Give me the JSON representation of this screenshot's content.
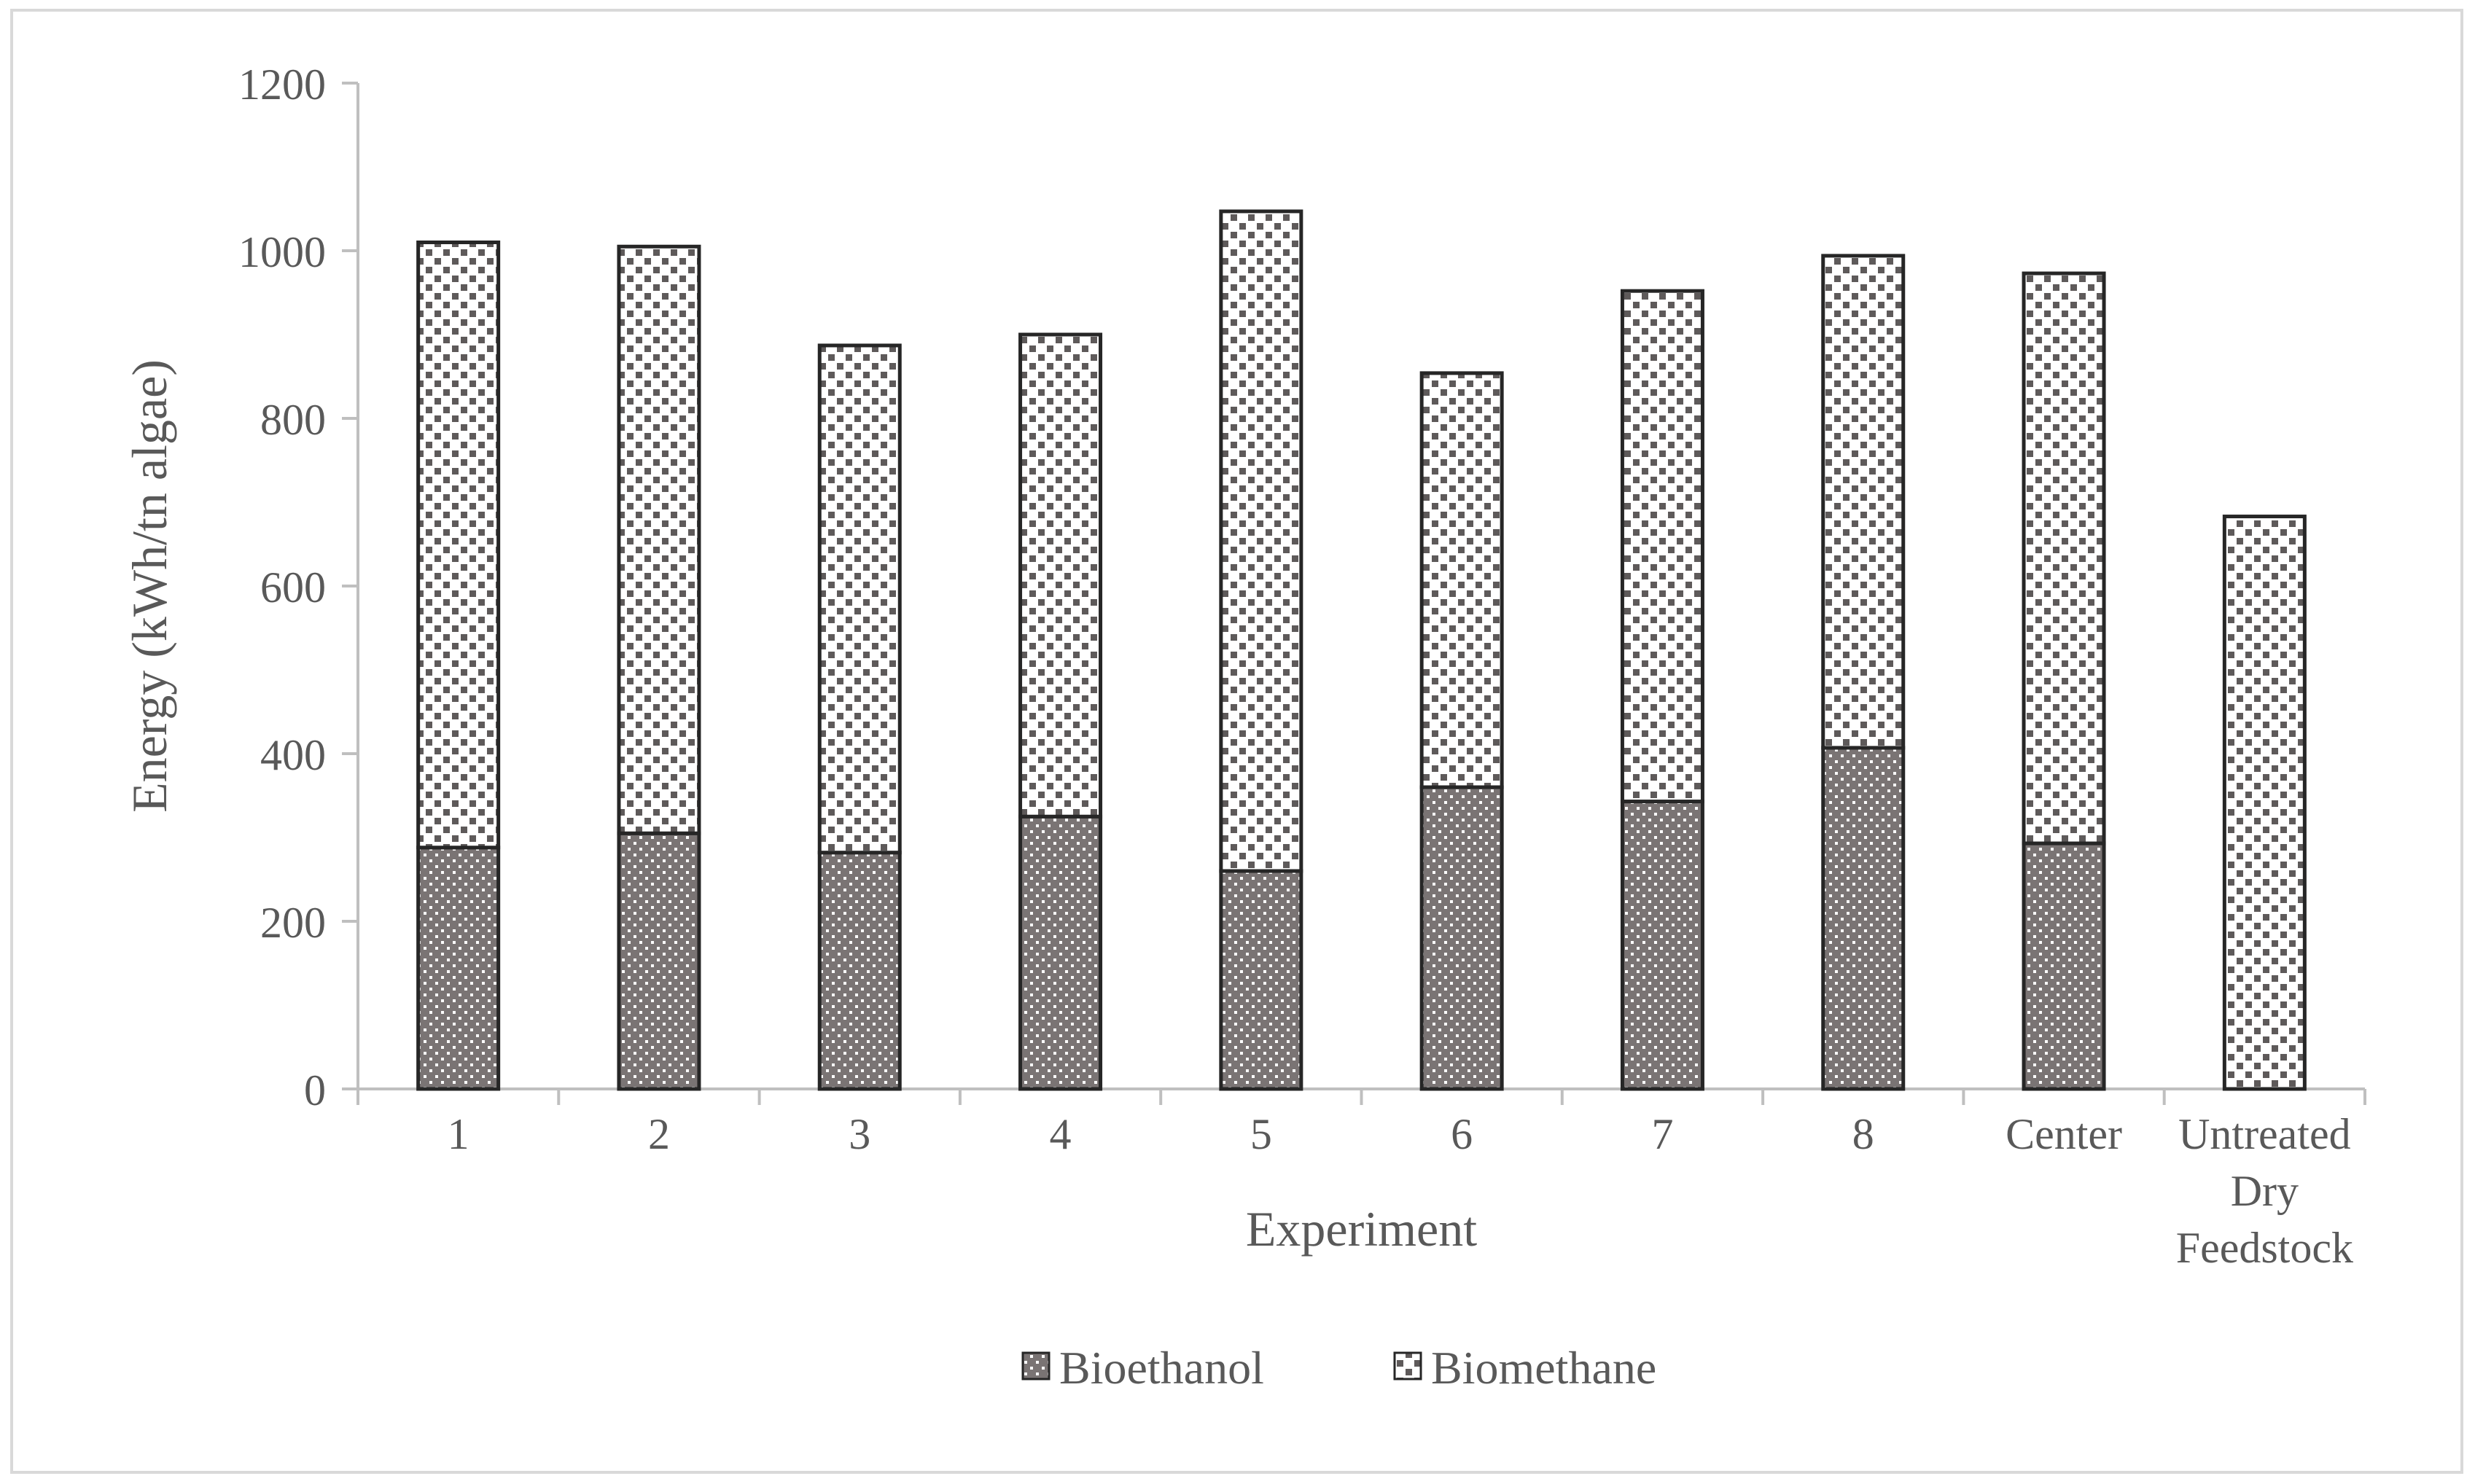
{
  "chart_data": {
    "type": "bar",
    "stacked": true,
    "categories": [
      "1",
      "2",
      "3",
      "4",
      "5",
      "6",
      "7",
      "8",
      "Center",
      "Untreated Dry Feedstock"
    ],
    "category_lines": [
      [
        "1"
      ],
      [
        "2"
      ],
      [
        "3"
      ],
      [
        "4"
      ],
      [
        "5"
      ],
      [
        "6"
      ],
      [
        "7"
      ],
      [
        "8"
      ],
      [
        "Center"
      ],
      [
        "Untreated",
        "Dry",
        "Feedstock"
      ]
    ],
    "series": [
      {
        "name": "Bioethanol",
        "values": [
          288,
          305,
          282,
          325,
          260,
          360,
          343,
          407,
          293,
          0
        ],
        "color": "#7a7474",
        "pattern": "dots"
      },
      {
        "name": "Biomethane",
        "values": [
          722,
          700,
          605,
          575,
          787,
          494,
          609,
          587,
          680,
          683
        ],
        "color": "#ffffff",
        "pattern": "squares"
      }
    ],
    "xlabel": "Experiment",
    "ylabel": "Energy (kWh/tn algae)",
    "ylim": [
      0,
      1200
    ],
    "yticks": [
      "0",
      "200",
      "400",
      "600",
      "800",
      "1000",
      "1200"
    ],
    "grid": false,
    "legend_position": "bottom"
  },
  "colors": {
    "bar_outline": "#262626",
    "bioethanol_fill": "#7a7474",
    "pattern_mark": "#5e5a5a",
    "axis": "#bfbfbf",
    "text": "#595959"
  }
}
